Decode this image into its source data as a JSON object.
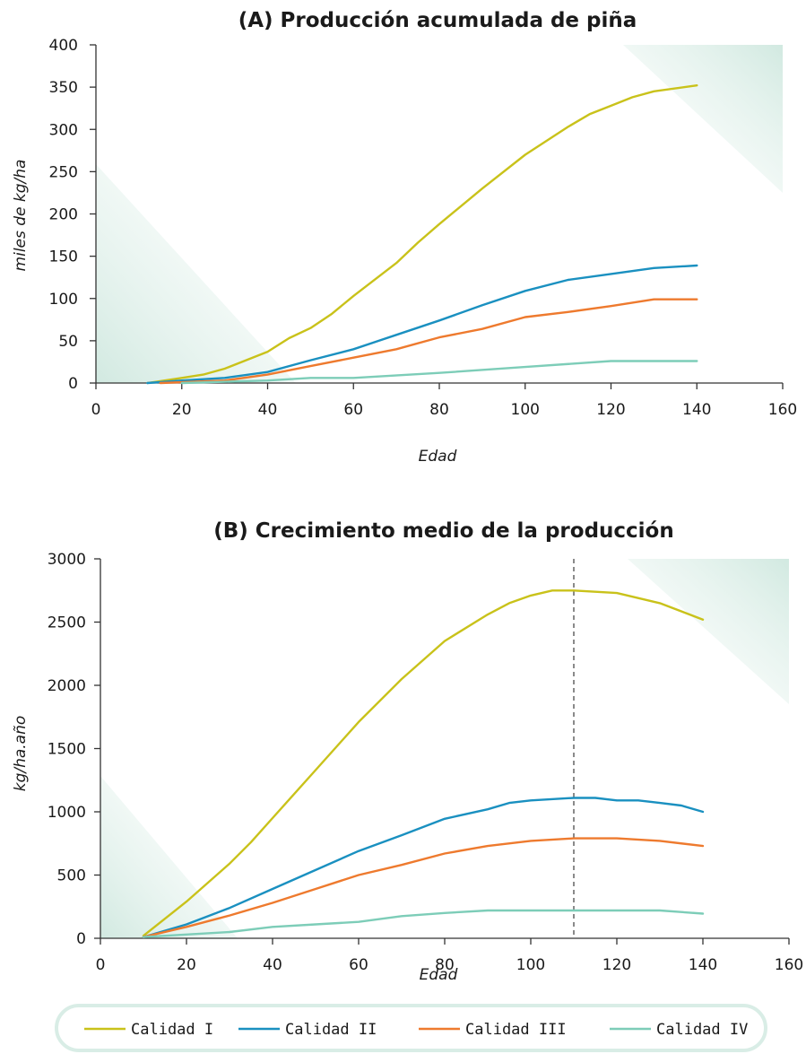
{
  "chart_data": [
    {
      "type": "line",
      "title": "(A) Producción acumulada de piña",
      "xlabel": "Edad",
      "ylabel": "miles de kg/ha",
      "xlim": [
        0,
        160
      ],
      "ylim": [
        0,
        400
      ],
      "xticks": [
        0,
        20,
        40,
        60,
        80,
        100,
        120,
        140,
        160
      ],
      "yticks": [
        0,
        50,
        100,
        150,
        200,
        250,
        300,
        350,
        400
      ],
      "grid": false,
      "series": [
        {
          "name": "Calidad I",
          "color": "#c9c21a",
          "points": [
            [
              12,
              0
            ],
            [
              20,
              6
            ],
            [
              25,
              10
            ],
            [
              30,
              17
            ],
            [
              40,
              37
            ],
            [
              45,
              53
            ],
            [
              50,
              65
            ],
            [
              55,
              82
            ],
            [
              60,
              103
            ],
            [
              70,
              142
            ],
            [
              75,
              166
            ],
            [
              80,
              188
            ],
            [
              90,
              230
            ],
            [
              100,
              270
            ],
            [
              110,
              303
            ],
            [
              115,
              318
            ],
            [
              120,
              328
            ],
            [
              125,
              338
            ],
            [
              130,
              345
            ],
            [
              140,
              352
            ]
          ]
        },
        {
          "name": "Calidad II",
          "color": "#1a90c0",
          "points": [
            [
              12,
              0
            ],
            [
              20,
              3
            ],
            [
              30,
              6
            ],
            [
              40,
              13
            ],
            [
              50,
              27
            ],
            [
              60,
              40
            ],
            [
              70,
              57
            ],
            [
              80,
              74
            ],
            [
              90,
              92
            ],
            [
              100,
              109
            ],
            [
              110,
              122
            ],
            [
              120,
              129
            ],
            [
              130,
              136
            ],
            [
              140,
              139
            ]
          ]
        },
        {
          "name": "Calidad III",
          "color": "#ee7a2e",
          "points": [
            [
              15,
              0
            ],
            [
              30,
              3
            ],
            [
              40,
              10
            ],
            [
              50,
              20
            ],
            [
              60,
              30
            ],
            [
              70,
              40
            ],
            [
              80,
              54
            ],
            [
              90,
              64
            ],
            [
              100,
              78
            ],
            [
              110,
              84
            ],
            [
              120,
              91
            ],
            [
              130,
              99
            ],
            [
              140,
              99
            ]
          ]
        },
        {
          "name": "Calidad IV",
          "color": "#7dcdb8",
          "points": [
            [
              20,
              0
            ],
            [
              40,
              3
            ],
            [
              50,
              6
            ],
            [
              60,
              6
            ],
            [
              80,
              12
            ],
            [
              100,
              19
            ],
            [
              120,
              26
            ],
            [
              130,
              26
            ],
            [
              140,
              26
            ]
          ]
        }
      ]
    },
    {
      "type": "line",
      "title": "(B) Crecimiento medio de la producción",
      "xlabel": "Edad",
      "ylabel": "kg/ha.año",
      "xlim": [
        0,
        160
      ],
      "ylim": [
        0,
        3000
      ],
      "xticks": [
        0,
        20,
        40,
        60,
        80,
        100,
        120,
        140,
        160
      ],
      "yticks": [
        0,
        500,
        1000,
        1500,
        2000,
        2500,
        3000
      ],
      "grid": false,
      "reference_line_x": 110,
      "series": [
        {
          "name": "Calidad I",
          "color": "#c9c21a",
          "points": [
            [
              10,
              20
            ],
            [
              20,
              290
            ],
            [
              30,
              590
            ],
            [
              35,
              760
            ],
            [
              40,
              950
            ],
            [
              50,
              1330
            ],
            [
              60,
              1710
            ],
            [
              70,
              2050
            ],
            [
              80,
              2350
            ],
            [
              90,
              2560
            ],
            [
              95,
              2650
            ],
            [
              100,
              2710
            ],
            [
              105,
              2750
            ],
            [
              110,
              2750
            ],
            [
              120,
              2730
            ],
            [
              130,
              2650
            ],
            [
              140,
              2520
            ]
          ]
        },
        {
          "name": "Calidad II",
          "color": "#1a90c0",
          "points": [
            [
              10,
              10
            ],
            [
              20,
              110
            ],
            [
              30,
              240
            ],
            [
              40,
              390
            ],
            [
              50,
              540
            ],
            [
              60,
              690
            ],
            [
              70,
              815
            ],
            [
              80,
              945
            ],
            [
              90,
              1020
            ],
            [
              95,
              1070
            ],
            [
              100,
              1090
            ],
            [
              110,
              1110
            ],
            [
              115,
              1110
            ],
            [
              120,
              1090
            ],
            [
              125,
              1090
            ],
            [
              130,
              1070
            ],
            [
              135,
              1050
            ],
            [
              140,
              1000
            ]
          ]
        },
        {
          "name": "Calidad III",
          "color": "#ee7a2e",
          "points": [
            [
              10,
              10
            ],
            [
              20,
              90
            ],
            [
              30,
              180
            ],
            [
              40,
              280
            ],
            [
              50,
              390
            ],
            [
              60,
              500
            ],
            [
              70,
              580
            ],
            [
              80,
              670
            ],
            [
              90,
              730
            ],
            [
              100,
              770
            ],
            [
              110,
              790
            ],
            [
              120,
              790
            ],
            [
              130,
              770
            ],
            [
              140,
              730
            ]
          ]
        },
        {
          "name": "Calidad IV",
          "color": "#7dcdb8",
          "points": [
            [
              10,
              10
            ],
            [
              20,
              30
            ],
            [
              30,
              50
            ],
            [
              40,
              90
            ],
            [
              50,
              110
            ],
            [
              60,
              130
            ],
            [
              70,
              175
            ],
            [
              80,
              200
            ],
            [
              90,
              220
            ],
            [
              100,
              220
            ],
            [
              110,
              220
            ],
            [
              120,
              220
            ],
            [
              130,
              220
            ],
            [
              140,
              195
            ]
          ]
        }
      ]
    }
  ],
  "legend": {
    "placement": "bottom",
    "items": [
      {
        "label": "Calidad I",
        "color": "#c9c21a"
      },
      {
        "label": "Calidad II",
        "color": "#1a90c0"
      },
      {
        "label": "Calidad III",
        "color": "#ee7a2e"
      },
      {
        "label": "Calidad IV",
        "color": "#7dcdb8"
      }
    ]
  }
}
